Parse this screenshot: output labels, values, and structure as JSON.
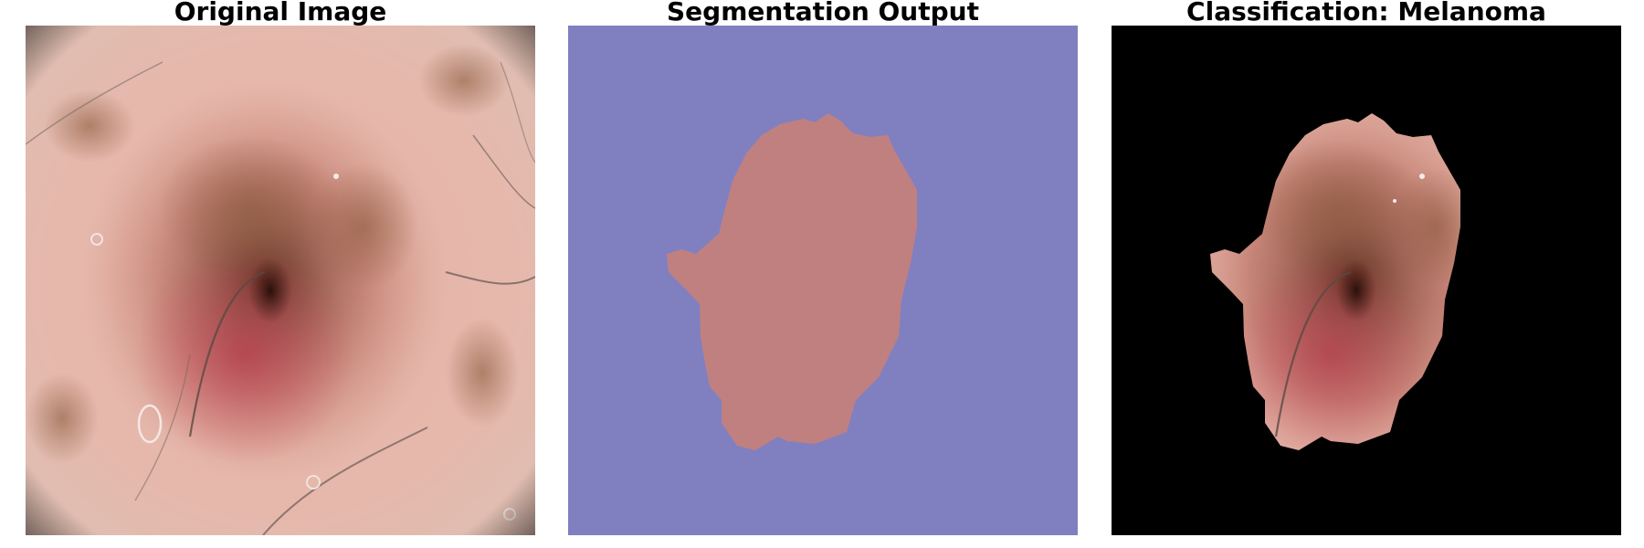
{
  "panels": [
    {
      "title": "Original Image"
    },
    {
      "title": "Segmentation Output"
    },
    {
      "title": "Classification: Melanoma"
    }
  ],
  "colors": {
    "page_background": "#ffffff",
    "segmentation_background": "#8080c0",
    "segmentation_lesion": "#c08080",
    "mask_background": "#000000",
    "skin_tone": "#e8b4a8",
    "lesion_dark": "#4a2418"
  }
}
